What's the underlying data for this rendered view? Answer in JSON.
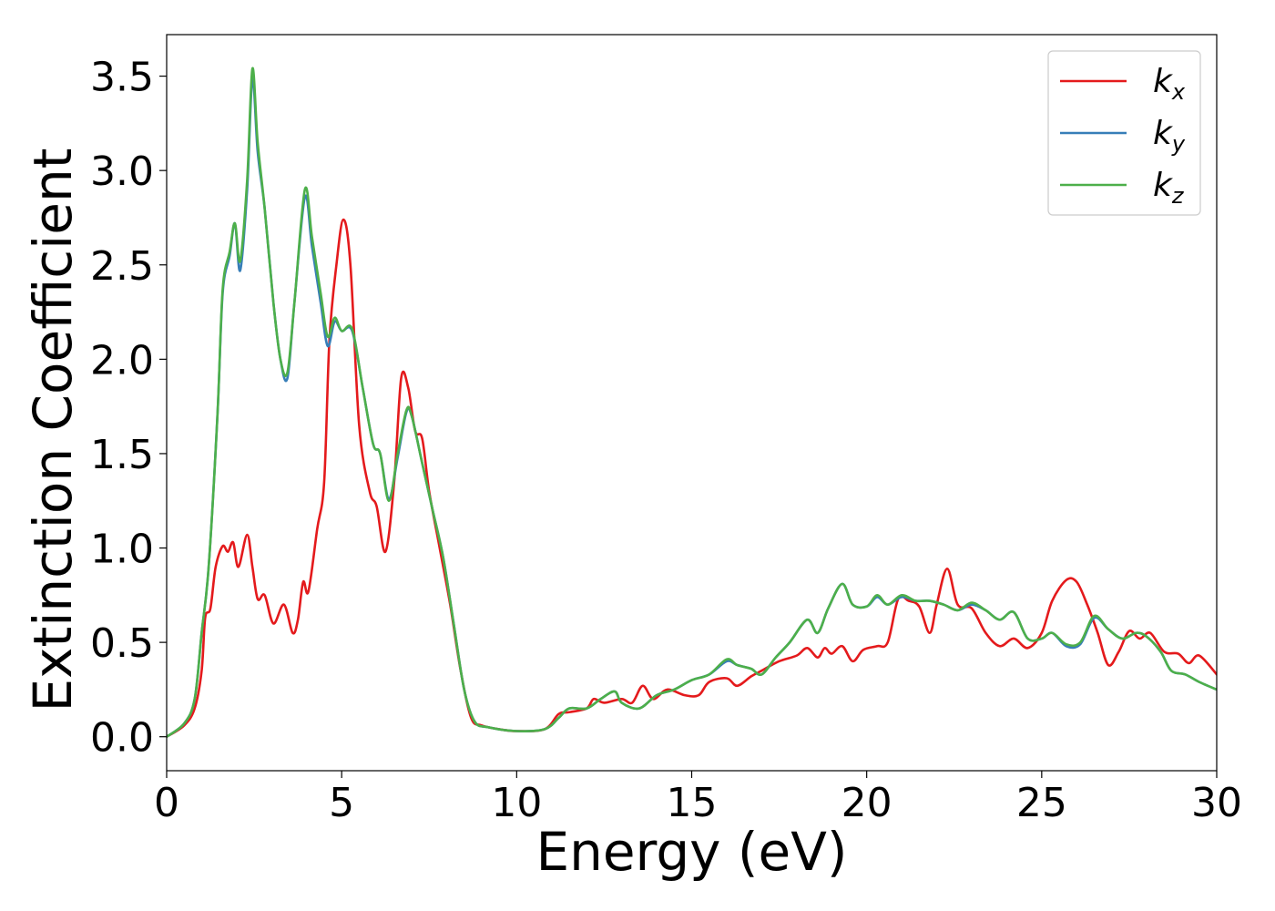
{
  "chart_data": {
    "type": "line",
    "xlabel": "Energy (eV)",
    "ylabel": "Extinction Coefficient",
    "xlim": [
      0,
      30
    ],
    "ylim": [
      -0.18,
      3.72
    ],
    "xticks": [
      0,
      5,
      10,
      15,
      20,
      25,
      30
    ],
    "xtick_labels": [
      "0",
      "5",
      "10",
      "15",
      "20",
      "25",
      "30"
    ],
    "yticks": [
      0.0,
      0.5,
      1.0,
      1.5,
      2.0,
      2.5,
      3.0,
      3.5
    ],
    "ytick_labels": [
      "0.0",
      "0.5",
      "1.0",
      "1.5",
      "2.0",
      "2.5",
      "3.0",
      "3.5"
    ],
    "grid": false,
    "legend_position": "top-right",
    "series": [
      {
        "name": "k_x",
        "label_main": "k",
        "label_sub": "x",
        "color": "#e41a1c",
        "points": [
          [
            0,
            0.0
          ],
          [
            0.5,
            0.06
          ],
          [
            0.8,
            0.15
          ],
          [
            1.0,
            0.35
          ],
          [
            1.1,
            0.63
          ],
          [
            1.25,
            0.68
          ],
          [
            1.4,
            0.9
          ],
          [
            1.6,
            1.01
          ],
          [
            1.75,
            0.98
          ],
          [
            1.9,
            1.03
          ],
          [
            2.05,
            0.9
          ],
          [
            2.3,
            1.07
          ],
          [
            2.45,
            0.9
          ],
          [
            2.6,
            0.73
          ],
          [
            2.8,
            0.75
          ],
          [
            3.05,
            0.6
          ],
          [
            3.35,
            0.7
          ],
          [
            3.6,
            0.55
          ],
          [
            3.75,
            0.62
          ],
          [
            3.9,
            0.82
          ],
          [
            4.05,
            0.77
          ],
          [
            4.3,
            1.1
          ],
          [
            4.5,
            1.35
          ],
          [
            4.65,
            2.1
          ],
          [
            4.85,
            2.5
          ],
          [
            5.05,
            2.74
          ],
          [
            5.25,
            2.5
          ],
          [
            5.5,
            1.65
          ],
          [
            5.8,
            1.3
          ],
          [
            6.0,
            1.22
          ],
          [
            6.25,
            0.98
          ],
          [
            6.5,
            1.35
          ],
          [
            6.7,
            1.9
          ],
          [
            6.9,
            1.85
          ],
          [
            7.1,
            1.62
          ],
          [
            7.3,
            1.58
          ],
          [
            7.5,
            1.3
          ],
          [
            7.8,
            1.0
          ],
          [
            8.1,
            0.7
          ],
          [
            8.4,
            0.35
          ],
          [
            8.7,
            0.1
          ],
          [
            9.0,
            0.06
          ],
          [
            9.5,
            0.04
          ],
          [
            10.0,
            0.03
          ],
          [
            10.8,
            0.04
          ],
          [
            11.2,
            0.12
          ],
          [
            11.5,
            0.13
          ],
          [
            12.0,
            0.15
          ],
          [
            12.2,
            0.2
          ],
          [
            12.5,
            0.18
          ],
          [
            13.0,
            0.2
          ],
          [
            13.3,
            0.18
          ],
          [
            13.6,
            0.27
          ],
          [
            13.9,
            0.2
          ],
          [
            14.3,
            0.25
          ],
          [
            14.8,
            0.22
          ],
          [
            15.2,
            0.22
          ],
          [
            15.5,
            0.29
          ],
          [
            16.0,
            0.31
          ],
          [
            16.3,
            0.27
          ],
          [
            16.7,
            0.32
          ],
          [
            17.0,
            0.35
          ],
          [
            17.5,
            0.4
          ],
          [
            18.0,
            0.43
          ],
          [
            18.3,
            0.47
          ],
          [
            18.6,
            0.42
          ],
          [
            18.8,
            0.47
          ],
          [
            19.0,
            0.44
          ],
          [
            19.3,
            0.48
          ],
          [
            19.6,
            0.4
          ],
          [
            19.9,
            0.46
          ],
          [
            20.3,
            0.48
          ],
          [
            20.6,
            0.5
          ],
          [
            20.9,
            0.73
          ],
          [
            21.2,
            0.72
          ],
          [
            21.5,
            0.69
          ],
          [
            21.8,
            0.55
          ],
          [
            22.0,
            0.7
          ],
          [
            22.3,
            0.89
          ],
          [
            22.6,
            0.7
          ],
          [
            23.0,
            0.68
          ],
          [
            23.4,
            0.55
          ],
          [
            23.8,
            0.48
          ],
          [
            24.2,
            0.52
          ],
          [
            24.6,
            0.47
          ],
          [
            25.0,
            0.55
          ],
          [
            25.3,
            0.72
          ],
          [
            25.7,
            0.83
          ],
          [
            26.0,
            0.82
          ],
          [
            26.3,
            0.7
          ],
          [
            26.6,
            0.55
          ],
          [
            26.9,
            0.38
          ],
          [
            27.2,
            0.45
          ],
          [
            27.5,
            0.56
          ],
          [
            27.8,
            0.52
          ],
          [
            28.1,
            0.55
          ],
          [
            28.5,
            0.45
          ],
          [
            28.9,
            0.44
          ],
          [
            29.2,
            0.39
          ],
          [
            29.5,
            0.43
          ],
          [
            30.0,
            0.33
          ]
        ]
      },
      {
        "name": "k_y",
        "label_main": "k",
        "label_sub": "y",
        "color": "#377eb8",
        "points": [
          [
            0,
            0.0
          ],
          [
            0.5,
            0.07
          ],
          [
            0.8,
            0.2
          ],
          [
            1.0,
            0.55
          ],
          [
            1.2,
            0.9
          ],
          [
            1.45,
            1.7
          ],
          [
            1.6,
            2.35
          ],
          [
            1.8,
            2.55
          ],
          [
            1.95,
            2.72
          ],
          [
            2.1,
            2.47
          ],
          [
            2.3,
            2.9
          ],
          [
            2.45,
            3.49
          ],
          [
            2.6,
            3.1
          ],
          [
            2.8,
            2.8
          ],
          [
            3.05,
            2.3
          ],
          [
            3.25,
            2.0
          ],
          [
            3.45,
            1.9
          ],
          [
            3.65,
            2.3
          ],
          [
            3.95,
            2.86
          ],
          [
            4.15,
            2.6
          ],
          [
            4.4,
            2.3
          ],
          [
            4.6,
            2.07
          ],
          [
            4.8,
            2.2
          ],
          [
            5.0,
            2.15
          ],
          [
            5.3,
            2.15
          ],
          [
            5.6,
            1.85
          ],
          [
            5.9,
            1.55
          ],
          [
            6.1,
            1.5
          ],
          [
            6.35,
            1.26
          ],
          [
            6.6,
            1.48
          ],
          [
            6.85,
            1.72
          ],
          [
            7.0,
            1.7
          ],
          [
            7.3,
            1.45
          ],
          [
            7.6,
            1.2
          ],
          [
            7.9,
            0.95
          ],
          [
            8.2,
            0.6
          ],
          [
            8.5,
            0.25
          ],
          [
            8.8,
            0.08
          ],
          [
            9.2,
            0.05
          ],
          [
            10.0,
            0.03
          ],
          [
            10.8,
            0.04
          ],
          [
            11.2,
            0.1
          ],
          [
            11.5,
            0.15
          ],
          [
            12.0,
            0.15
          ],
          [
            12.4,
            0.2
          ],
          [
            12.8,
            0.24
          ],
          [
            13.0,
            0.18
          ],
          [
            13.5,
            0.15
          ],
          [
            14.0,
            0.22
          ],
          [
            14.5,
            0.25
          ],
          [
            15.0,
            0.3
          ],
          [
            15.5,
            0.33
          ],
          [
            16.0,
            0.4
          ],
          [
            16.3,
            0.38
          ],
          [
            16.7,
            0.36
          ],
          [
            17.0,
            0.33
          ],
          [
            17.4,
            0.42
          ],
          [
            17.8,
            0.5
          ],
          [
            18.3,
            0.62
          ],
          [
            18.6,
            0.55
          ],
          [
            18.9,
            0.68
          ],
          [
            19.3,
            0.81
          ],
          [
            19.6,
            0.7
          ],
          [
            20.0,
            0.69
          ],
          [
            20.3,
            0.74
          ],
          [
            20.6,
            0.7
          ],
          [
            21.0,
            0.74
          ],
          [
            21.4,
            0.72
          ],
          [
            21.8,
            0.72
          ],
          [
            22.2,
            0.7
          ],
          [
            22.6,
            0.67
          ],
          [
            23.0,
            0.7
          ],
          [
            23.4,
            0.67
          ],
          [
            23.8,
            0.62
          ],
          [
            24.2,
            0.66
          ],
          [
            24.6,
            0.52
          ],
          [
            25.0,
            0.52
          ],
          [
            25.3,
            0.55
          ],
          [
            25.7,
            0.48
          ],
          [
            26.1,
            0.49
          ],
          [
            26.5,
            0.63
          ],
          [
            26.9,
            0.57
          ],
          [
            27.3,
            0.52
          ],
          [
            27.7,
            0.55
          ],
          [
            28.0,
            0.53
          ],
          [
            28.4,
            0.45
          ],
          [
            28.7,
            0.35
          ],
          [
            29.1,
            0.33
          ],
          [
            29.5,
            0.29
          ],
          [
            30.0,
            0.25
          ]
        ]
      },
      {
        "name": "k_z",
        "label_main": "k",
        "label_sub": "z",
        "color": "#4daf4a",
        "points": [
          [
            0,
            0.0
          ],
          [
            0.5,
            0.07
          ],
          [
            0.8,
            0.2
          ],
          [
            1.0,
            0.55
          ],
          [
            1.2,
            0.9
          ],
          [
            1.45,
            1.7
          ],
          [
            1.6,
            2.37
          ],
          [
            1.8,
            2.57
          ],
          [
            1.95,
            2.72
          ],
          [
            2.1,
            2.52
          ],
          [
            2.3,
            2.95
          ],
          [
            2.45,
            3.54
          ],
          [
            2.6,
            3.15
          ],
          [
            2.8,
            2.8
          ],
          [
            3.05,
            2.3
          ],
          [
            3.25,
            2.0
          ],
          [
            3.45,
            1.93
          ],
          [
            3.65,
            2.3
          ],
          [
            3.95,
            2.9
          ],
          [
            4.15,
            2.65
          ],
          [
            4.4,
            2.35
          ],
          [
            4.6,
            2.12
          ],
          [
            4.8,
            2.22
          ],
          [
            5.0,
            2.15
          ],
          [
            5.3,
            2.16
          ],
          [
            5.6,
            1.85
          ],
          [
            5.9,
            1.55
          ],
          [
            6.1,
            1.5
          ],
          [
            6.35,
            1.25
          ],
          [
            6.6,
            1.5
          ],
          [
            6.85,
            1.73
          ],
          [
            7.0,
            1.7
          ],
          [
            7.3,
            1.45
          ],
          [
            7.6,
            1.2
          ],
          [
            7.9,
            0.95
          ],
          [
            8.2,
            0.6
          ],
          [
            8.5,
            0.25
          ],
          [
            8.8,
            0.08
          ],
          [
            9.2,
            0.05
          ],
          [
            10.0,
            0.03
          ],
          [
            10.8,
            0.04
          ],
          [
            11.2,
            0.1
          ],
          [
            11.5,
            0.15
          ],
          [
            12.0,
            0.15
          ],
          [
            12.4,
            0.2
          ],
          [
            12.8,
            0.24
          ],
          [
            13.0,
            0.18
          ],
          [
            13.5,
            0.15
          ],
          [
            14.0,
            0.22
          ],
          [
            14.5,
            0.25
          ],
          [
            15.0,
            0.3
          ],
          [
            15.5,
            0.33
          ],
          [
            16.0,
            0.41
          ],
          [
            16.3,
            0.38
          ],
          [
            16.7,
            0.36
          ],
          [
            17.0,
            0.33
          ],
          [
            17.4,
            0.42
          ],
          [
            17.8,
            0.5
          ],
          [
            18.3,
            0.62
          ],
          [
            18.6,
            0.55
          ],
          [
            18.9,
            0.68
          ],
          [
            19.3,
            0.81
          ],
          [
            19.6,
            0.7
          ],
          [
            20.0,
            0.69
          ],
          [
            20.3,
            0.75
          ],
          [
            20.6,
            0.7
          ],
          [
            21.0,
            0.75
          ],
          [
            21.4,
            0.72
          ],
          [
            21.8,
            0.72
          ],
          [
            22.2,
            0.7
          ],
          [
            22.6,
            0.67
          ],
          [
            23.0,
            0.71
          ],
          [
            23.4,
            0.67
          ],
          [
            23.8,
            0.62
          ],
          [
            24.2,
            0.66
          ],
          [
            24.6,
            0.52
          ],
          [
            25.0,
            0.52
          ],
          [
            25.3,
            0.55
          ],
          [
            25.7,
            0.49
          ],
          [
            26.1,
            0.5
          ],
          [
            26.5,
            0.64
          ],
          [
            26.9,
            0.57
          ],
          [
            27.3,
            0.52
          ],
          [
            27.7,
            0.55
          ],
          [
            28.0,
            0.53
          ],
          [
            28.4,
            0.45
          ],
          [
            28.7,
            0.35
          ],
          [
            29.1,
            0.33
          ],
          [
            29.5,
            0.29
          ],
          [
            30.0,
            0.25
          ]
        ]
      }
    ]
  }
}
